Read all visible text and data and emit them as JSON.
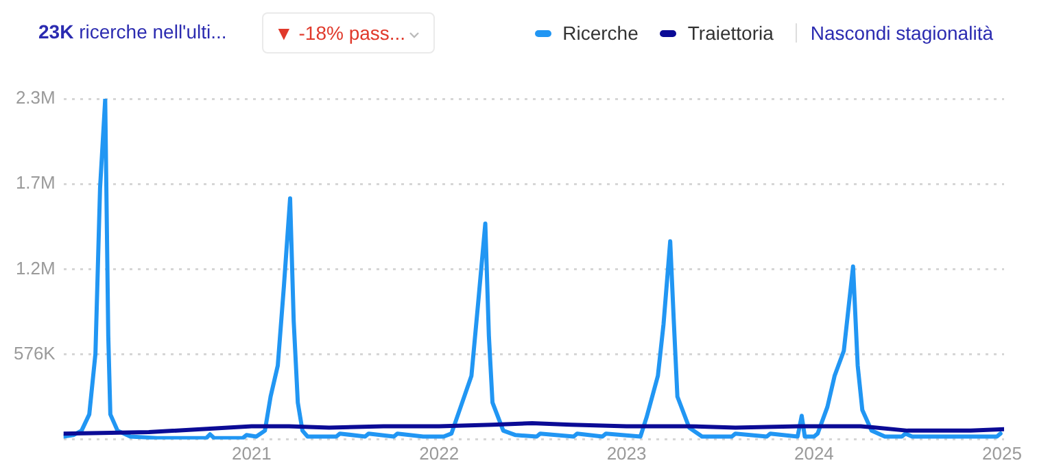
{
  "chart_data": {
    "type": "line",
    "annotations": [
      "23K ricerche nell'ulti...",
      "▼ -18% pass...",
      "Nascondi stagionalità"
    ],
    "xlim": [
      "2020-01-01",
      "2025-01-05"
    ],
    "xticks": [
      "2021",
      "2022",
      "2023",
      "2024",
      "2025"
    ],
    "ylim": [
      0,
      2304000
    ],
    "yticks": [
      {
        "value": 0,
        "label": null
      },
      {
        "value": 576000,
        "label": "576K"
      },
      {
        "value": 1152000,
        "label": "1.2M"
      },
      {
        "value": 1728000,
        "label": "1.7M"
      },
      {
        "value": 2304000,
        "label": "2.3M"
      }
    ],
    "grid": "y",
    "legend": "top right",
    "marker": "none",
    "line_style": "solid",
    "series": [
      {
        "name": "Ricerche",
        "color": "#2196f3",
        "x": [
          "2020-01-01",
          "2020-01-20",
          "2020-02-05",
          "2020-02-20",
          "2020-03-03",
          "2020-03-12",
          "2020-03-22",
          "2020-03-28",
          "2020-04-01",
          "2020-04-15",
          "2020-05-10",
          "2020-07-01",
          "2020-10-05",
          "2020-10-12",
          "2020-10-20",
          "2020-12-15",
          "2020-12-22",
          "2021-01-10",
          "2021-01-27",
          "2021-02-07",
          "2021-02-21",
          "2021-03-05",
          "2021-03-17",
          "2021-03-24",
          "2021-04-01",
          "2021-04-10",
          "2021-04-20",
          "2021-06-15",
          "2021-06-22",
          "2021-08-10",
          "2021-08-17",
          "2021-10-05",
          "2021-10-12",
          "2021-12-01",
          "2022-01-10",
          "2022-01-25",
          "2022-02-12",
          "2022-03-05",
          "2022-03-18",
          "2022-04-01",
          "2022-04-08",
          "2022-04-15",
          "2022-05-06",
          "2022-05-30",
          "2022-07-10",
          "2022-07-17",
          "2022-09-20",
          "2022-09-27",
          "2022-11-15",
          "2022-11-22",
          "2023-01-28",
          "2023-02-09",
          "2023-03-03",
          "2023-03-14",
          "2023-03-27",
          "2023-04-03",
          "2023-04-10",
          "2023-05-03",
          "2023-05-28",
          "2023-07-25",
          "2023-08-01",
          "2023-10-01",
          "2023-10-08",
          "2023-11-30",
          "2023-12-08",
          "2023-12-14",
          "2024-01-01",
          "2024-01-08",
          "2024-01-27",
          "2024-02-10",
          "2024-02-28",
          "2024-03-17",
          "2024-03-26",
          "2024-04-04",
          "2024-04-22",
          "2024-05-18",
          "2024-06-20",
          "2024-06-27",
          "2024-07-10",
          "2024-12-22",
          "2024-12-29"
        ],
        "values": [
          20000,
          30000,
          60000,
          170000,
          580000,
          1700000,
          2300000,
          700000,
          170000,
          60000,
          20000,
          10000,
          10000,
          35000,
          10000,
          10000,
          30000,
          20000,
          60000,
          290000,
          500000,
          1040000,
          1630000,
          800000,
          250000,
          60000,
          20000,
          20000,
          40000,
          20000,
          40000,
          20000,
          40000,
          20000,
          20000,
          40000,
          220000,
          430000,
          920000,
          1460000,
          700000,
          250000,
          60000,
          30000,
          20000,
          40000,
          20000,
          40000,
          20000,
          40000,
          20000,
          150000,
          430000,
          780000,
          1340000,
          800000,
          290000,
          80000,
          20000,
          20000,
          40000,
          20000,
          40000,
          20000,
          160000,
          20000,
          20000,
          40000,
          220000,
          430000,
          600000,
          1170000,
          500000,
          200000,
          60000,
          20000,
          20000,
          40000,
          20000,
          20000,
          40000
        ]
      },
      {
        "name": "Traiettoria",
        "color": "#0b0b96",
        "x": [
          "2020-01-01",
          "2020-06-15",
          "2021-01-01",
          "2021-03-15",
          "2021-06-01",
          "2021-09-15",
          "2022-01-01",
          "2022-04-15",
          "2022-07-01",
          "2022-09-15",
          "2023-01-01",
          "2023-05-01",
          "2023-08-01",
          "2023-12-01",
          "2024-04-01",
          "2024-07-01",
          "2024-11-01",
          "2025-01-05"
        ],
        "values": [
          40000,
          50000,
          90000,
          90000,
          80000,
          90000,
          90000,
          100000,
          110000,
          100000,
          90000,
          90000,
          80000,
          90000,
          90000,
          60000,
          60000,
          70000
        ]
      }
    ]
  }
}
